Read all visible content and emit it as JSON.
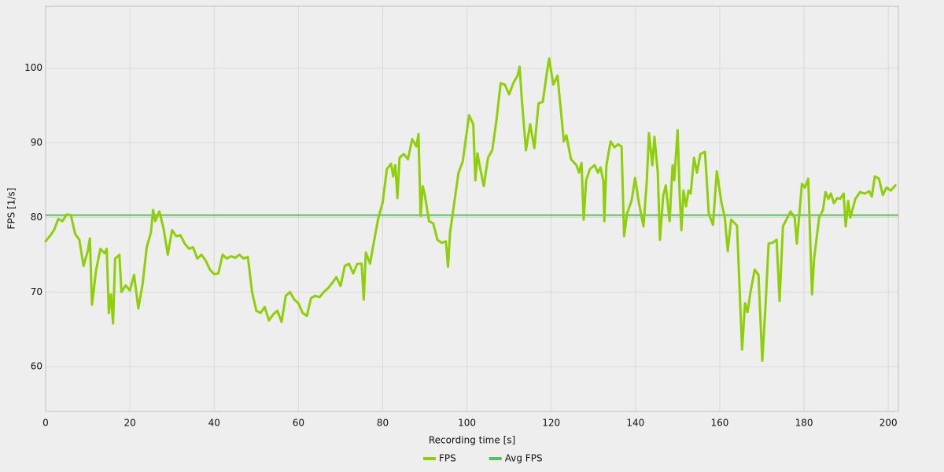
{
  "chart_data": {
    "type": "line",
    "x_label": "Recording time [s]",
    "y_label": "FPS [1/s]",
    "xlim": [
      0,
      202.4
    ],
    "ylim": [
      54,
      108.3
    ],
    "xticks": [
      0,
      20,
      40,
      60,
      80,
      100,
      120,
      140,
      160,
      180,
      200
    ],
    "yticks": [
      60,
      70,
      80,
      90,
      100
    ],
    "grid": true,
    "legend": "bottom",
    "series": [
      {
        "name": "FPS",
        "color": "#8fcf0a",
        "x": [
          0,
          1,
          2,
          3,
          4,
          5,
          6,
          7,
          8,
          9,
          10,
          10.5,
          11,
          12,
          13,
          14,
          14.5,
          15,
          15.5,
          16,
          16.5,
          17.5,
          18,
          19,
          20,
          21,
          22,
          23,
          24,
          25,
          25.5,
          26,
          27,
          28,
          29,
          30,
          31,
          32,
          33,
          34,
          35,
          36,
          37,
          38,
          39,
          40,
          41,
          42,
          43,
          44,
          45,
          46,
          47,
          48,
          49,
          50,
          51,
          52,
          53,
          54,
          55,
          56,
          57,
          58,
          59,
          60,
          61,
          62,
          63,
          64,
          65,
          66,
          67,
          68,
          69,
          70,
          71,
          72,
          73,
          74,
          75,
          75.5,
          76,
          77,
          78,
          79,
          80,
          81,
          82,
          82.5,
          83,
          83.5,
          84,
          85,
          86,
          87,
          88,
          88.5,
          89,
          89.5,
          90,
          91,
          92,
          93,
          94,
          95,
          95.5,
          96,
          97,
          98,
          99,
          100.5,
          101.5,
          102,
          102.5,
          103,
          104,
          105,
          106,
          107,
          108,
          109,
          110,
          111,
          112,
          112.5,
          113,
          114,
          115,
          116,
          117,
          118,
          119,
          119.5,
          120.5,
          121.5,
          123,
          123.6,
          124.7,
          126.0,
          126.6,
          127.2,
          127.7,
          128.3,
          129.2,
          130.3,
          131.1,
          131.7,
          132.4,
          132.6,
          133.1,
          134.1,
          135.0,
          135.9,
          136.7,
          137.3,
          138.0,
          139.1,
          139.9,
          140.8,
          141.9,
          142.7,
          143.2,
          144.0,
          144.5,
          145.3,
          145.8,
          146.6,
          147.2,
          148.1,
          148.8,
          149.2,
          150.0,
          150.5,
          150.9,
          151.4,
          152.0,
          152.6,
          153.1,
          153.9,
          154.6,
          155.4,
          156.5,
          157.4,
          158.4,
          159.3,
          160.4,
          161.2,
          161.9,
          162.7,
          163.6,
          164.1,
          165.3,
          166.0,
          166.6,
          167.3,
          168.3,
          169.2,
          170.1,
          170.9,
          171.6,
          172.5,
          173.5,
          174.2,
          175.0,
          175.9,
          176.8,
          177.8,
          178.3,
          179.5,
          180.2,
          181.0,
          181.9,
          182.4,
          183.6,
          184.5,
          185.1,
          185.8,
          186.4,
          187.1,
          187.9,
          188.6,
          189.4,
          189.9,
          190.5,
          191.0,
          192.2,
          193.3,
          194.4,
          195.5,
          196.1,
          196.8,
          197.8,
          198.7,
          199.6,
          200.6,
          201.7
        ],
        "values": [
          76.8,
          77.5,
          78.3,
          79.8,
          79.5,
          80.4,
          80.3,
          77.8,
          77.0,
          73.5,
          75.5,
          77.2,
          68.3,
          73.0,
          75.8,
          75.2,
          75.8,
          67.2,
          69.7,
          65.8,
          74.5,
          75.0,
          70.0,
          70.9,
          70.2,
          72.3,
          67.8,
          71.0,
          76.0,
          78.0,
          81.0,
          79.5,
          80.8,
          78.5,
          75.0,
          78.3,
          77.5,
          77.6,
          76.5,
          75.8,
          76.0,
          74.5,
          75.0,
          74.2,
          73.0,
          72.4,
          72.5,
          75.0,
          74.5,
          74.8,
          74.6,
          75.0,
          74.5,
          74.7,
          70.0,
          67.5,
          67.2,
          68.0,
          66.2,
          67.0,
          67.5,
          66.0,
          69.5,
          70.0,
          69.0,
          68.5,
          67.2,
          66.8,
          69.2,
          69.5,
          69.3,
          70.0,
          70.5,
          71.2,
          72.0,
          70.8,
          73.5,
          73.8,
          72.5,
          73.8,
          73.8,
          69.0,
          75.3,
          73.8,
          77.0,
          80.0,
          82.0,
          86.5,
          87.2,
          85.5,
          87.0,
          82.6,
          88.0,
          88.5,
          87.8,
          90.5,
          89.5,
          91.2,
          80.2,
          84.2,
          83.0,
          79.5,
          79.2,
          77.0,
          76.6,
          76.8,
          73.4,
          78.0,
          82.0,
          86.0,
          87.5,
          93.7,
          92.5,
          85.0,
          88.6,
          87.0,
          84.2,
          88.0,
          89.0,
          93.0,
          98.0,
          97.8,
          96.5,
          98.0,
          99.0,
          100.2,
          96.0,
          89.0,
          92.5,
          89.3,
          95.3,
          95.5,
          99.5,
          101.3,
          97.8,
          99.0,
          90.2,
          91.0,
          87.8,
          87.0,
          86.0,
          87.3,
          79.7,
          85.0,
          86.5,
          87.0,
          86.0,
          86.7,
          84.8,
          79.5,
          87.0,
          90.2,
          89.4,
          89.8,
          89.5,
          77.5,
          80.5,
          82.3,
          85.3,
          82.0,
          78.8,
          85.0,
          91.3,
          87.0,
          90.8,
          86.0,
          77.0,
          83.0,
          84.3,
          79.5,
          87.0,
          85.0,
          91.7,
          83.0,
          78.3,
          83.6,
          81.5,
          83.6,
          83.2,
          88.0,
          86.0,
          88.5,
          88.8,
          80.5,
          79.0,
          86.2,
          82.0,
          80.0,
          75.5,
          79.7,
          79.2,
          78.9,
          62.3,
          68.5,
          67.3,
          70.0,
          73.0,
          72.3,
          60.8,
          68.5,
          76.5,
          76.6,
          77.0,
          68.8,
          78.8,
          79.8,
          80.8,
          80.0,
          76.5,
          84.5,
          84.0,
          85.2,
          69.7,
          74.5,
          80.0,
          81.0,
          83.4,
          82.5,
          83.2,
          81.9,
          82.6,
          82.5,
          83.2,
          78.8,
          82.2,
          80.0,
          82.5,
          83.4,
          83.2,
          83.5,
          82.8,
          85.5,
          85.2,
          83.0,
          84.0,
          83.6,
          84.3
        ]
      }
    ],
    "hlines": [
      {
        "name": "Avg FPS",
        "color": "#5cc05c",
        "value": 80.3
      }
    ]
  }
}
